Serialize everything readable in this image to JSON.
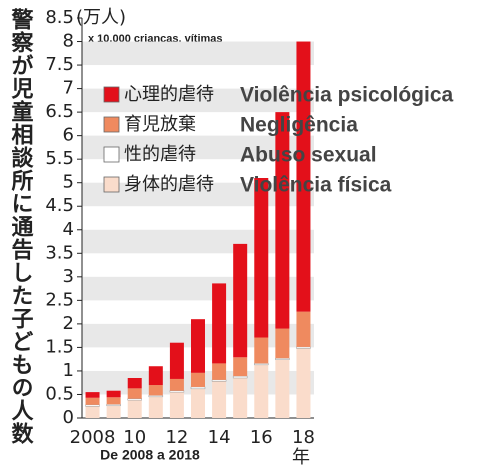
{
  "chart_data": {
    "type": "stacked_bar",
    "title": "警察が児童相談所に通告した子どもの人数",
    "y_unit": "(万人)",
    "subtitle": "x 10.000 crianças, vítimas",
    "caption": "De 2008 a 2018",
    "x_unit": "年",
    "categories": [
      "2008",
      null,
      "10",
      null,
      "12",
      null,
      "14",
      null,
      "16",
      null,
      "18"
    ],
    "series": [
      {
        "name": "心理的虐待",
        "translation": "Violência psicológica",
        "color": "#e3101a",
        "values": [
          0.12,
          0.14,
          0.22,
          0.4,
          0.77,
          1.14,
          1.7,
          2.41,
          3.39,
          4.6,
          5.74
        ]
      },
      {
        "name": "育児放棄",
        "translation": "Negligência",
        "color": "#ef8a5f",
        "values": [
          0.15,
          0.15,
          0.22,
          0.22,
          0.25,
          0.3,
          0.35,
          0.4,
          0.55,
          0.63,
          0.75
        ]
      },
      {
        "name": "性的虐待",
        "translation": "Abuso sexual",
        "color": "#ffffff",
        "values": [
          0.03,
          0.03,
          0.03,
          0.03,
          0.03,
          0.04,
          0.03,
          0.04,
          0.03,
          0.03,
          0.03
        ]
      },
      {
        "name": "身体的虐待",
        "translation": "Violência física",
        "color": "#fadccb",
        "values": [
          0.25,
          0.26,
          0.38,
          0.45,
          0.55,
          0.62,
          0.78,
          0.85,
          1.13,
          1.24,
          1.48
        ]
      }
    ],
    "ylim": [
      0,
      8.5
    ],
    "yticks": [
      0,
      0.5,
      1,
      1.5,
      2,
      2.5,
      3,
      3.5,
      4,
      4.5,
      5,
      5.5,
      6,
      6.5,
      7,
      7.5,
      8,
      8.5
    ],
    "grid": "bands"
  }
}
